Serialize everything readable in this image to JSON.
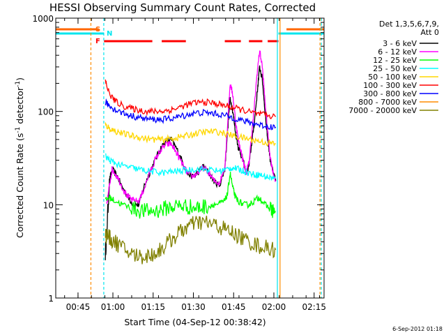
{
  "chart_data": {
    "type": "line",
    "title": "HESSI Observing Summary Count Rates, Corrected",
    "xlabel": "Start Time (04-Sep-12 00:38:42)",
    "ylabel": "Corrected Count Rate (s⁻¹ detector⁻¹)",
    "ylabel_parts": {
      "main": "Corrected Count Rate (s",
      "exp1": "-1",
      "mid": " detector",
      "exp2": "-1",
      "close": ")"
    },
    "x_unit": "minutes since 00:38:42",
    "xlim": [
      0,
      100
    ],
    "ylim": [
      1,
      1000
    ],
    "yscale": "log",
    "grid": false,
    "x_ticks": [
      {
        "value": 8.3,
        "label": "00:45"
      },
      {
        "value": 21.3,
        "label": "01:00"
      },
      {
        "value": 36.3,
        "label": "01:15"
      },
      {
        "value": 51.3,
        "label": "01:30"
      },
      {
        "value": 66.3,
        "label": "01:45"
      },
      {
        "value": 81.3,
        "label": "02:00"
      },
      {
        "value": 96.3,
        "label": "02:15"
      }
    ],
    "y_ticks": [
      {
        "value": 1,
        "label": "1"
      },
      {
        "value": 10,
        "label": "10"
      },
      {
        "value": 100,
        "label": "100"
      },
      {
        "value": 1000,
        "label": "1000"
      }
    ],
    "legend": {
      "position": "right",
      "header": [
        "Det 1,3,5,6,7,9,",
        "Att 0"
      ]
    },
    "flags": {
      "S": {
        "label": "S",
        "color": "#ff6600",
        "segments": [
          [
            0,
            16
          ],
          [
            86,
            100
          ]
        ]
      },
      "N": {
        "label": "N",
        "color": "#00e5ee",
        "segments": [
          [
            0,
            18
          ],
          [
            83,
            100
          ]
        ]
      },
      "F": {
        "label": "F",
        "color": "#ff0000",
        "segments": [
          [
            18,
            36
          ],
          [
            39.5,
            48.5
          ],
          [
            63,
            69
          ],
          [
            72,
            77
          ],
          [
            79,
            83
          ]
        ]
      }
    },
    "vertical_markers": [
      {
        "x": 13.1,
        "color": "#ff8c00",
        "style": "dashed"
      },
      {
        "x": 17.9,
        "color": "#00e5ee",
        "style": "dashed"
      },
      {
        "x": 82.6,
        "color": "#00e5ee",
        "style": "solid"
      },
      {
        "x": 83.6,
        "color": "#ff8c00",
        "style": "solid"
      },
      {
        "x": 98.5,
        "color": "#ff8c00",
        "style": "dashed"
      },
      {
        "x": 99.0,
        "color": "#00e5ee",
        "style": "dashed"
      }
    ],
    "series": [
      {
        "name": "3 - 6 keV",
        "color": "#000000",
        "x": [
          18.5,
          19,
          20,
          21,
          23,
          25,
          27,
          29,
          31,
          33,
          35,
          37,
          39,
          41,
          43,
          45,
          47,
          49,
          51,
          53,
          55,
          57,
          59,
          61,
          63,
          64,
          65,
          66,
          67,
          68,
          69,
          70,
          71,
          72,
          73,
          74,
          75,
          76,
          77,
          78,
          79,
          80,
          81,
          82
        ],
        "y": [
          3,
          5,
          18,
          24,
          20,
          15,
          12,
          10,
          10,
          16,
          22,
          30,
          40,
          48,
          50,
          40,
          30,
          22,
          20,
          22,
          26,
          22,
          18,
          16,
          24,
          60,
          140,
          100,
          60,
          42,
          35,
          28,
          22,
          26,
          45,
          75,
          150,
          300,
          220,
          100,
          50,
          30,
          22,
          18
        ]
      },
      {
        "name": "6 - 12 keV",
        "color": "#ff00ff",
        "x": [
          19,
          20,
          21,
          23,
          25,
          27,
          29,
          31,
          33,
          35,
          37,
          39,
          41,
          43,
          45,
          47,
          49,
          51,
          53,
          55,
          57,
          59,
          61,
          63,
          64,
          65,
          66,
          67,
          68,
          69,
          70,
          71,
          72,
          73,
          74,
          75,
          76,
          77,
          78,
          79,
          80,
          81,
          82
        ],
        "y": [
          10,
          16,
          24,
          20,
          15,
          12,
          11,
          11,
          15,
          22,
          30,
          38,
          44,
          45,
          36,
          28,
          22,
          20,
          22,
          25,
          22,
          18,
          17,
          25,
          70,
          200,
          150,
          80,
          50,
          38,
          28,
          22,
          28,
          55,
          110,
          250,
          450,
          300,
          130,
          60,
          32,
          22,
          18
        ]
      },
      {
        "name": "12 - 25 keV",
        "color": "#00ff00",
        "x": [
          18.5,
          20,
          22,
          25,
          28,
          31,
          34,
          37,
          40,
          43,
          46,
          49,
          52,
          55,
          58,
          61,
          63,
          64,
          65,
          66,
          67,
          68,
          70,
          72,
          74,
          76,
          78,
          80,
          82
        ],
        "y": [
          11,
          12,
          11,
          10,
          9.3,
          8.7,
          8.5,
          8.6,
          9,
          9.5,
          9.8,
          9.6,
          9.2,
          9.5,
          10,
          10.2,
          11,
          13,
          22,
          15,
          12,
          11,
          10,
          10,
          11,
          12,
          10,
          9,
          8.5
        ]
      },
      {
        "name": "25 - 50 keV",
        "color": "#00ffff",
        "x": [
          18.5,
          20,
          22,
          25,
          28,
          31,
          34,
          37,
          40,
          43,
          46,
          49,
          52,
          55,
          58,
          61,
          64,
          66,
          68,
          70,
          72,
          74,
          76,
          78,
          80,
          82
        ],
        "y": [
          33,
          30,
          28,
          26,
          25,
          24,
          23,
          22.5,
          22,
          22.5,
          23,
          23.5,
          24,
          24,
          23.5,
          23,
          24,
          25,
          24,
          23,
          22,
          21,
          21,
          20,
          19.5,
          19
        ]
      },
      {
        "name": "50 - 100 keV",
        "color": "#ffd700",
        "x": [
          18.5,
          20,
          22,
          25,
          28,
          31,
          34,
          37,
          40,
          43,
          46,
          49,
          52,
          55,
          58,
          61,
          64,
          67,
          70,
          73,
          76,
          79,
          82
        ],
        "y": [
          72,
          66,
          62,
          58,
          55,
          53,
          51,
          50,
          50,
          51,
          53,
          55,
          58,
          60,
          61,
          60,
          57,
          54,
          52,
          50,
          48,
          46,
          45
        ]
      },
      {
        "name": "100 - 300 keV",
        "color": "#ff0000",
        "x": [
          18.5,
          20,
          22,
          25,
          28,
          31,
          34,
          37,
          40,
          43,
          46,
          49,
          52,
          55,
          58,
          61,
          64,
          67,
          70,
          73,
          76,
          79,
          82
        ],
        "y": [
          210,
          155,
          130,
          115,
          108,
          103,
          100,
          100,
          101,
          104,
          110,
          118,
          124,
          126,
          124,
          119,
          114,
          108,
          103,
          97,
          93,
          90,
          88
        ]
      },
      {
        "name": "300 - 800 keV",
        "color": "#0000ff",
        "x": [
          18.5,
          20,
          22,
          25,
          28,
          31,
          34,
          37,
          40,
          43,
          46,
          49,
          52,
          55,
          58,
          61,
          64,
          67,
          70,
          73,
          76,
          79,
          82
        ],
        "y": [
          125,
          115,
          105,
          96,
          90,
          86,
          83,
          82,
          82,
          84,
          88,
          92,
          96,
          97,
          96,
          93,
          89,
          84,
          79,
          75,
          72,
          69,
          68
        ]
      },
      {
        "name": "800 - 7000 keV",
        "color": "#ff8c00",
        "x": [],
        "y": []
      },
      {
        "name": "7000 - 20000 keV",
        "color": "#808000",
        "x": [
          18.5,
          20,
          22,
          25,
          28,
          31,
          34,
          37,
          40,
          43,
          46,
          49,
          52,
          55,
          58,
          61,
          64,
          67,
          70,
          73,
          76,
          79,
          82
        ],
        "y": [
          4.8,
          4.4,
          4,
          3.4,
          3,
          2.8,
          2.8,
          3,
          3.5,
          4.2,
          5,
          5.8,
          6.3,
          6.5,
          6.2,
          5.8,
          5.3,
          4.8,
          4.3,
          3.9,
          3.6,
          3.4,
          3.3
        ]
      }
    ]
  },
  "footer": {
    "date_stamp": "6-Sep-2012 01:18"
  }
}
